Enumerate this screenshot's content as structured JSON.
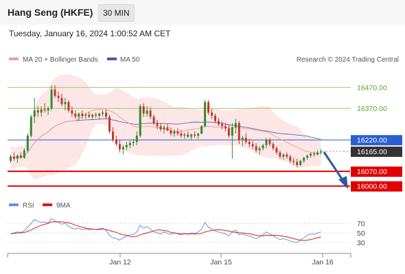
{
  "header": {
    "title": "Hang Seng (HKFE)",
    "timeframe": "30 MIN",
    "datetime": "Tuesday, January 16, 2024 1:00:52 AM CET"
  },
  "legend": {
    "ma20": "MA 20 + Bollinger Bands",
    "ma50": "MA 50",
    "credit": "Research © 2024 Trading Central",
    "rsi": "RSI",
    "ma9": "9MA"
  },
  "colors": {
    "ma20": "#f39a9a",
    "ma50": "#3c5ea0",
    "band": "#fbe0e0",
    "up": "#2e8b2e",
    "down": "#c0392b",
    "resistance": "#9ccc65",
    "support": "#e00000",
    "pivot": "#2a5fd1",
    "rsi": "#6f8fe0",
    "ma9": "#d81b1b",
    "arrow": "#2a5a9e"
  },
  "chart_data": {
    "type": "candlestick",
    "price_range": [
      15940,
      16560
    ],
    "levels": [
      {
        "label": "16470.00",
        "value": 16470,
        "kind": "resistance"
      },
      {
        "label": "16370.00",
        "value": 16370,
        "kind": "resistance"
      },
      {
        "label": "16220.00",
        "value": 16220,
        "kind": "pivot"
      },
      {
        "label": "16165.00",
        "value": 16165,
        "kind": "last"
      },
      {
        "label": "16070.00",
        "value": 16070,
        "kind": "support"
      },
      {
        "label": "16000.00",
        "value": 16000,
        "kind": "support"
      }
    ],
    "x_ticks": [
      "Jan 12",
      "Jan 15",
      "Jan 16"
    ],
    "ohlc": [
      [
        16120,
        16150,
        16110,
        16140
      ],
      [
        16140,
        16160,
        16120,
        16130
      ],
      [
        16130,
        16150,
        16110,
        16145
      ],
      [
        16145,
        16160,
        16130,
        16135
      ],
      [
        16135,
        16180,
        16130,
        16170
      ],
      [
        16170,
        16250,
        16160,
        16240
      ],
      [
        16240,
        16340,
        16230,
        16330
      ],
      [
        16330,
        16420,
        16300,
        16360
      ],
      [
        16360,
        16380,
        16330,
        16350
      ],
      [
        16350,
        16380,
        16330,
        16365
      ],
      [
        16365,
        16395,
        16350,
        16360
      ],
      [
        16360,
        16380,
        16340,
        16370
      ],
      [
        16370,
        16480,
        16360,
        16460
      ],
      [
        16460,
        16480,
        16420,
        16430
      ],
      [
        16430,
        16450,
        16400,
        16420
      ],
      [
        16420,
        16440,
        16380,
        16390
      ],
      [
        16390,
        16420,
        16360,
        16400
      ],
      [
        16400,
        16410,
        16350,
        16360
      ],
      [
        16360,
        16380,
        16330,
        16345
      ],
      [
        16345,
        16360,
        16320,
        16330
      ],
      [
        16330,
        16350,
        16310,
        16345
      ],
      [
        16345,
        16360,
        16320,
        16335
      ],
      [
        16335,
        16350,
        16320,
        16340
      ],
      [
        16340,
        16355,
        16325,
        16330
      ],
      [
        16330,
        16345,
        16315,
        16340
      ],
      [
        16340,
        16350,
        16325,
        16335
      ],
      [
        16335,
        16350,
        16320,
        16345
      ],
      [
        16345,
        16360,
        16330,
        16350
      ],
      [
        16350,
        16365,
        16320,
        16330
      ],
      [
        16330,
        16340,
        16250,
        16260
      ],
      [
        16260,
        16280,
        16210,
        16220
      ],
      [
        16220,
        16240,
        16190,
        16200
      ],
      [
        16200,
        16220,
        16160,
        16175
      ],
      [
        16175,
        16195,
        16150,
        16185
      ],
      [
        16185,
        16210,
        16170,
        16195
      ],
      [
        16195,
        16215,
        16180,
        16205
      ],
      [
        16205,
        16225,
        16190,
        16210
      ],
      [
        16210,
        16260,
        16195,
        16240
      ],
      [
        16240,
        16390,
        16230,
        16380
      ],
      [
        16380,
        16395,
        16330,
        16345
      ],
      [
        16345,
        16380,
        16330,
        16360
      ],
      [
        16360,
        16375,
        16320,
        16330
      ],
      [
        16330,
        16340,
        16290,
        16300
      ],
      [
        16300,
        16315,
        16270,
        16285
      ],
      [
        16285,
        16300,
        16260,
        16270
      ],
      [
        16270,
        16290,
        16250,
        16280
      ],
      [
        16280,
        16295,
        16260,
        16265
      ],
      [
        16265,
        16280,
        16240,
        16250
      ],
      [
        16250,
        16270,
        16235,
        16260
      ],
      [
        16260,
        16275,
        16240,
        16250
      ],
      [
        16250,
        16265,
        16230,
        16240
      ],
      [
        16240,
        16255,
        16225,
        16245
      ],
      [
        16245,
        16260,
        16230,
        16235
      ],
      [
        16235,
        16250,
        16220,
        16245
      ],
      [
        16245,
        16260,
        16230,
        16240
      ],
      [
        16240,
        16255,
        16225,
        16250
      ],
      [
        16250,
        16290,
        16245,
        16285
      ],
      [
        16285,
        16410,
        16280,
        16400
      ],
      [
        16400,
        16410,
        16340,
        16350
      ],
      [
        16350,
        16365,
        16320,
        16335
      ],
      [
        16335,
        16345,
        16300,
        16310
      ],
      [
        16310,
        16325,
        16285,
        16295
      ],
      [
        16295,
        16310,
        16270,
        16285
      ],
      [
        16285,
        16300,
        16260,
        16275
      ],
      [
        16275,
        16290,
        16230,
        16240
      ],
      [
        16240,
        16300,
        16130,
        16280
      ],
      [
        16280,
        16320,
        16250,
        16300
      ],
      [
        16300,
        16310,
        16200,
        16220
      ],
      [
        16220,
        16240,
        16190,
        16230
      ],
      [
        16230,
        16250,
        16200,
        16210
      ],
      [
        16210,
        16225,
        16185,
        16200
      ],
      [
        16200,
        16215,
        16175,
        16190
      ],
      [
        16190,
        16205,
        16160,
        16170
      ],
      [
        16170,
        16190,
        16150,
        16180
      ],
      [
        16180,
        16200,
        16170,
        16195
      ],
      [
        16195,
        16230,
        16180,
        16220
      ],
      [
        16220,
        16230,
        16190,
        16200
      ],
      [
        16200,
        16210,
        16170,
        16180
      ],
      [
        16180,
        16190,
        16150,
        16160
      ],
      [
        16160,
        16170,
        16130,
        16140
      ],
      [
        16140,
        16155,
        16125,
        16150
      ],
      [
        16150,
        16160,
        16130,
        16140
      ],
      [
        16140,
        16150,
        16110,
        16120
      ],
      [
        16120,
        16135,
        16100,
        16115
      ],
      [
        16115,
        16130,
        16090,
        16100
      ],
      [
        16100,
        16125,
        16095,
        16120
      ],
      [
        16120,
        16140,
        16110,
        16135
      ],
      [
        16135,
        16150,
        16125,
        16145
      ],
      [
        16145,
        16160,
        16135,
        16155
      ],
      [
        16155,
        16165,
        16140,
        16150
      ],
      [
        16150,
        16170,
        16145,
        16160
      ],
      [
        16160,
        16175,
        16150,
        16165
      ]
    ],
    "rsi_range": [
      10,
      90
    ],
    "rsi_ticks": [
      70,
      50,
      30
    ],
    "rsi": [
      48,
      50,
      52,
      51,
      55,
      62,
      70,
      78,
      74,
      72,
      73,
      71,
      80,
      75,
      72,
      68,
      70,
      64,
      60,
      58,
      60,
      57,
      58,
      56,
      58,
      57,
      59,
      60,
      55,
      45,
      40,
      38,
      35,
      40,
      43,
      46,
      47,
      52,
      66,
      60,
      63,
      58,
      52,
      50,
      48,
      52,
      49,
      47,
      50,
      48,
      46,
      49,
      47,
      50,
      49,
      52,
      58,
      72,
      62,
      58,
      54,
      52,
      50,
      48,
      44,
      52,
      56,
      46,
      48,
      45,
      43,
      41,
      38,
      42,
      46,
      52,
      48,
      44,
      40,
      36,
      38,
      36,
      33,
      31,
      30,
      35,
      40,
      45,
      48,
      47,
      50,
      52
    ],
    "ma9": [
      48,
      49,
      50,
      50,
      51,
      53,
      56,
      60,
      63,
      66,
      68,
      70,
      73,
      73,
      73,
      73,
      72,
      71,
      69,
      66,
      64,
      62,
      60,
      59,
      58,
      57,
      57,
      58,
      57,
      55,
      53,
      51,
      48,
      46,
      45,
      43,
      42,
      43,
      46,
      48,
      50,
      52,
      54,
      56,
      56,
      55,
      54,
      51,
      50,
      49,
      48,
      48,
      48,
      48,
      48,
      48,
      49,
      52,
      54,
      55,
      56,
      57,
      56,
      55,
      54,
      52,
      51,
      50,
      50,
      49,
      48,
      47,
      45,
      44,
      44,
      45,
      45,
      45,
      45,
      44,
      43,
      42,
      40,
      38,
      36,
      35,
      34,
      35,
      36,
      38,
      40,
      42
    ]
  }
}
